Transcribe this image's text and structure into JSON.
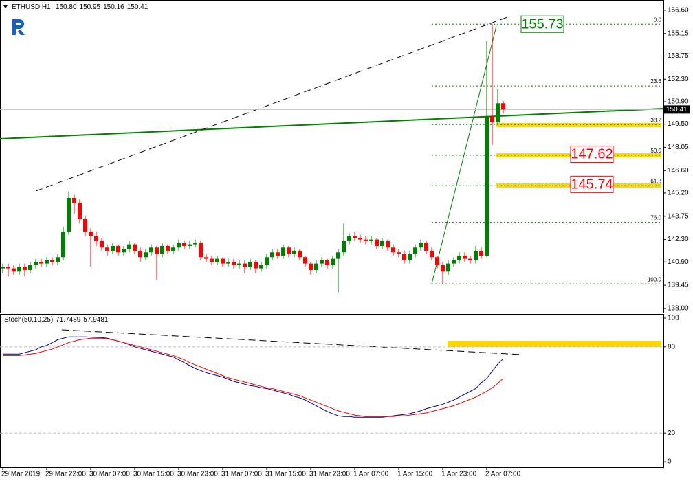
{
  "chart_data": [
    {
      "type": "candlestick",
      "title": "ETHUSD,H1",
      "quote_labels": [
        "150.80",
        "150.95",
        "150.16",
        "150.41"
      ],
      "categories": [
        "29 Mar 2019",
        null,
        null,
        null,
        null,
        null,
        null,
        null,
        "29 Mar 22:00",
        null,
        null,
        null,
        null,
        null,
        null,
        null,
        "30 Mar 07:00",
        null,
        null,
        null,
        null,
        null,
        null,
        null,
        "30 Mar 15:00",
        null,
        null,
        null,
        null,
        null,
        null,
        null,
        "30 Mar 23:00",
        null,
        null,
        null,
        null,
        null,
        null,
        null,
        "31 Mar 07:00",
        null,
        null,
        null,
        null,
        null,
        null,
        null,
        "31 Mar 15:00",
        null,
        null,
        null,
        null,
        null,
        null,
        null,
        "31 Mar 23:00",
        null,
        null,
        null,
        null,
        null,
        null,
        null,
        "1 Apr 07:00",
        null,
        null,
        null,
        null,
        null,
        null,
        null,
        "1 Apr 15:00",
        null,
        null,
        null,
        null,
        null,
        null,
        null,
        "1 Apr 23:00",
        null,
        null,
        null,
        null,
        null,
        null,
        null,
        "2 Apr 07:00",
        null,
        null,
        null
      ],
      "open": [
        140.5,
        140.6,
        140.5,
        140.3,
        140.6,
        140.4,
        140.7,
        140.9,
        140.8,
        141.0,
        140.9,
        141.2,
        142.8,
        144.9,
        144.6,
        143.6,
        142.8,
        142.5,
        142.2,
        141.8,
        141.6,
        141.9,
        141.5,
        141.7,
        142.0,
        141.6,
        141.2,
        141.5,
        141.8,
        141.4,
        141.9,
        141.6,
        141.8,
        142.1,
        141.9,
        142.0,
        142.1,
        141.2,
        141.1,
        140.9,
        141.1,
        140.8,
        140.9,
        140.7,
        140.8,
        140.6,
        140.9,
        140.5,
        140.7,
        141.2,
        141.5,
        141.3,
        141.8,
        141.4,
        141.6,
        141.2,
        140.8,
        140.4,
        140.8,
        141.0,
        140.7,
        141.1,
        141.5,
        142.2,
        142.5,
        142.4,
        142.3,
        142.2,
        142.3,
        141.9,
        142.2,
        141.8,
        141.5,
        141.4,
        141.0,
        141.4,
        141.8,
        142.1,
        141.6,
        141.2,
        140.7,
        140.3,
        140.8,
        141.0,
        141.3,
        141.1,
        141.0,
        141.6,
        141.3,
        150.0,
        149.6,
        150.8
      ],
      "high": [
        140.8,
        140.8,
        140.7,
        140.8,
        140.8,
        140.9,
        141.1,
        141.1,
        141.2,
        141.2,
        141.4,
        143.1,
        145.3,
        145.1,
        144.8,
        143.8,
        143.0,
        142.8,
        142.4,
        142.0,
        142.1,
        142.0,
        141.9,
        142.2,
        142.1,
        141.8,
        141.7,
        142.0,
        141.9,
        142.1,
        142.0,
        142.0,
        142.3,
        142.2,
        142.2,
        142.3,
        142.2,
        141.4,
        141.3,
        141.3,
        141.2,
        141.1,
        141.1,
        141.0,
        141.0,
        141.1,
        141.0,
        140.9,
        141.4,
        141.7,
        141.7,
        142.0,
        141.9,
        141.8,
        141.7,
        141.3,
        140.9,
        141.0,
        141.2,
        141.1,
        141.3,
        141.7,
        143.3,
        142.7,
        142.8,
        142.6,
        142.5,
        142.5,
        142.4,
        142.4,
        142.3,
        142.0,
        141.7,
        141.6,
        141.6,
        142.0,
        142.3,
        142.2,
        141.8,
        141.3,
        140.9,
        141.0,
        141.2,
        141.5,
        141.5,
        141.3,
        141.9,
        141.8,
        154.7,
        155.73,
        151.7,
        150.95
      ],
      "low": [
        140.2,
        140.0,
        140.1,
        140.1,
        140.0,
        140.2,
        140.5,
        140.6,
        140.6,
        140.7,
        140.7,
        141.0,
        142.6,
        143.9,
        143.3,
        142.5,
        140.6,
        141.9,
        141.6,
        141.3,
        141.4,
        141.3,
        141.3,
        141.5,
        141.4,
        140.9,
        141.0,
        141.3,
        139.8,
        141.2,
        141.4,
        141.4,
        141.6,
        141.7,
        141.7,
        141.8,
        141.0,
        140.9,
        140.7,
        140.7,
        140.6,
        140.6,
        140.5,
        140.5,
        140.2,
        140.4,
        140.2,
        140.3,
        140.5,
        141.0,
        141.1,
        141.1,
        141.2,
        141.2,
        141.0,
        140.6,
        140.1,
        140.2,
        140.6,
        140.5,
        140.5,
        139.0,
        141.3,
        142.0,
        142.2,
        142.1,
        142.0,
        142.0,
        141.7,
        141.7,
        141.6,
        141.3,
        141.2,
        140.8,
        140.8,
        141.2,
        141.6,
        141.4,
        141.0,
        140.5,
        139.5,
        140.1,
        140.6,
        140.8,
        140.9,
        140.8,
        140.8,
        141.1,
        141.2,
        148.2,
        149.5,
        150.16
      ],
      "close": [
        140.6,
        140.5,
        140.3,
        140.6,
        140.4,
        140.7,
        140.9,
        140.8,
        141.0,
        140.9,
        141.2,
        142.8,
        144.9,
        144.6,
        143.6,
        142.8,
        142.5,
        142.2,
        141.8,
        141.6,
        141.9,
        141.5,
        141.7,
        142.0,
        141.6,
        141.2,
        141.5,
        141.8,
        141.4,
        141.9,
        141.6,
        141.8,
        142.1,
        141.9,
        142.0,
        142.1,
        141.2,
        141.1,
        140.9,
        141.1,
        140.8,
        140.9,
        140.7,
        140.8,
        140.6,
        140.9,
        140.5,
        140.7,
        141.2,
        141.5,
        141.3,
        141.8,
        141.4,
        141.6,
        141.2,
        140.8,
        140.4,
        140.8,
        141.0,
        140.7,
        141.1,
        141.5,
        142.2,
        142.5,
        142.4,
        142.3,
        142.2,
        142.3,
        141.9,
        142.2,
        141.8,
        141.5,
        141.4,
        141.0,
        141.4,
        141.8,
        142.1,
        141.6,
        141.2,
        140.7,
        140.3,
        140.8,
        141.0,
        141.3,
        141.1,
        141.0,
        141.6,
        141.3,
        150.0,
        149.6,
        150.8,
        150.41
      ],
      "up_color": "#008000",
      "down_color": "#ff0000",
      "ylim": [
        137.74,
        157.24
      ],
      "yticks": [
        {
          "value": 138.0,
          "label": "138.00"
        },
        {
          "value": 139.45,
          "label": "139.45"
        },
        {
          "value": 140.9,
          "label": "140.90"
        },
        {
          "value": 142.3,
          "label": "142.30"
        },
        {
          "value": 143.75,
          "label": "143.75"
        },
        {
          "value": 145.2,
          "label": "145.20"
        },
        {
          "value": 146.6,
          "label": "146.60"
        },
        {
          "value": 148.05,
          "label": "148.05"
        },
        {
          "value": 149.5,
          "label": "149.50"
        },
        {
          "value": 150.9,
          "label": "150.90"
        },
        {
          "value": 152.3,
          "label": "152.30"
        },
        {
          "value": 153.75,
          "label": "153.75"
        },
        {
          "value": 155.15,
          "label": "155.15"
        },
        {
          "value": 156.6,
          "label": "156.60"
        }
      ],
      "fibo_labels": [
        "0.0",
        "23.6",
        "38.2",
        "50.0",
        "61.8",
        "76.0",
        "100.0"
      ],
      "fibo_prices": [
        155.73,
        151.88,
        149.47,
        147.56,
        145.66,
        143.37,
        139.53
      ],
      "fibo_color": "#008000",
      "annotations": [
        {
          "value": 155.73,
          "color": "#008000"
        },
        {
          "value": 147.62,
          "color": "#ff0000"
        },
        {
          "value": 145.74,
          "color": "#ff0000"
        }
      ]
    },
    {
      "type": "line",
      "title": "Stoch(50,10,25)",
      "series": [
        {
          "color": "#000080",
          "values": [
            75,
            75,
            75,
            75,
            76,
            77,
            78,
            80,
            81,
            83,
            85,
            86,
            87,
            87,
            87,
            87,
            86.8,
            86.6,
            86.5,
            86,
            85,
            84,
            83,
            81.5,
            80,
            79,
            78,
            77,
            76,
            75,
            74,
            73,
            71,
            69,
            67,
            65,
            63.5,
            62,
            61,
            60,
            59,
            57.5,
            56,
            55,
            54,
            53,
            52.5,
            51.5,
            51,
            50,
            49,
            48,
            47,
            45.5,
            44.5,
            43,
            41,
            39,
            37,
            35,
            33.5,
            32,
            31.5,
            31.5,
            31,
            31,
            31,
            31,
            31,
            31,
            31.5,
            32,
            32.5,
            33,
            33.5,
            34.5,
            35.5,
            37,
            38,
            39,
            40,
            41.5,
            43,
            45,
            47,
            49,
            51,
            55,
            58,
            63,
            68,
            71.7489
          ]
        },
        {
          "color": "#ff0000",
          "values": [
            74,
            74,
            74,
            74,
            74.5,
            75,
            75.5,
            76.5,
            77.5,
            78.5,
            80,
            81.5,
            83,
            84,
            85,
            85.5,
            86,
            86,
            86,
            85.5,
            85,
            84,
            83,
            82,
            81,
            80,
            79,
            78,
            77,
            76,
            75,
            74,
            72.5,
            71,
            69,
            67.5,
            66,
            64.5,
            63,
            61.5,
            60,
            58.5,
            57.5,
            56.5,
            55.5,
            54.5,
            53.5,
            52.5,
            51.5,
            51,
            50,
            49,
            48,
            47,
            46,
            44.5,
            43,
            41.5,
            40,
            38.5,
            37,
            35.5,
            34.5,
            33.5,
            32.5,
            32,
            31.5,
            31.5,
            31.5,
            31.5,
            31.5,
            31.5,
            32,
            32,
            32.5,
            33,
            33.5,
            34,
            35,
            36,
            37,
            38,
            39,
            40.5,
            42,
            43.5,
            45,
            47,
            49,
            51.5,
            54.5,
            57.9481
          ]
        }
      ],
      "ylim": [
        -3.8,
        102.4
      ],
      "yticks": [
        0,
        20,
        80,
        100
      ]
    }
  ]
}
